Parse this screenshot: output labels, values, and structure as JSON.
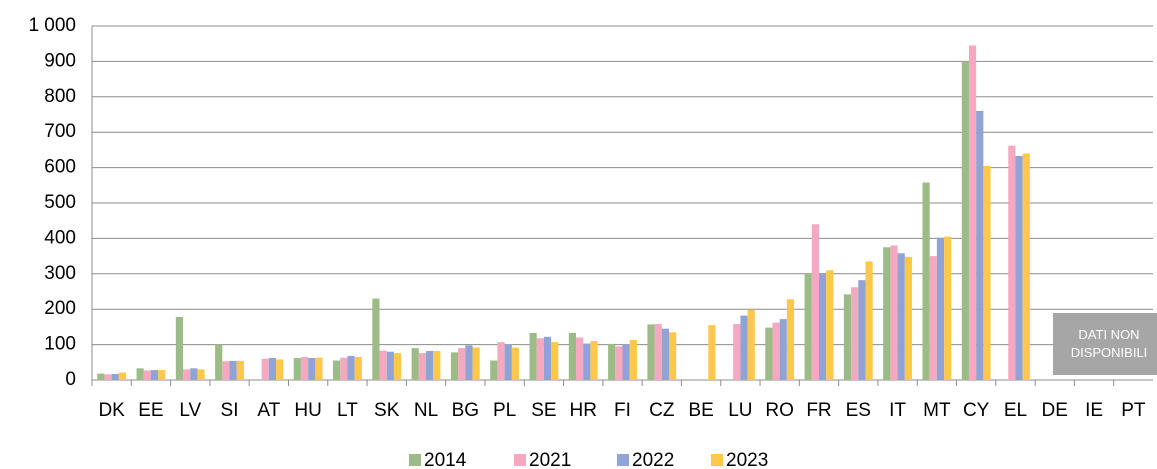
{
  "chart_data": {
    "type": "bar",
    "categories": [
      "DK",
      "EE",
      "LV",
      "SI",
      "AT",
      "HU",
      "LT",
      "SK",
      "NL",
      "BG",
      "PL",
      "SE",
      "HR",
      "FI",
      "CZ",
      "BE",
      "LU",
      "RO",
      "FR",
      "ES",
      "IT",
      "MT",
      "CY",
      "EL",
      "DE",
      "IE",
      "PT"
    ],
    "series": [
      {
        "name": "2014",
        "color": "#9cbb87",
        "values": [
          18,
          33,
          178,
          100,
          null,
          62,
          55,
          230,
          90,
          78,
          55,
          133,
          133,
          102,
          157,
          null,
          null,
          148,
          302,
          242,
          375,
          558,
          900,
          null,
          null,
          null,
          null
        ]
      },
      {
        "name": "2021",
        "color": "#f5a8c0",
        "values": [
          16,
          27,
          30,
          53,
          60,
          65,
          63,
          83,
          76,
          90,
          107,
          118,
          120,
          95,
          158,
          null,
          158,
          162,
          440,
          262,
          380,
          350,
          945,
          662,
          null,
          null,
          null
        ]
      },
      {
        "name": "2022",
        "color": "#8fa3d5",
        "values": [
          17,
          28,
          33,
          54,
          62,
          62,
          68,
          80,
          82,
          98,
          100,
          122,
          103,
          100,
          145,
          null,
          182,
          172,
          302,
          282,
          358,
          402,
          760,
          633,
          null,
          null,
          null
        ]
      },
      {
        "name": "2023",
        "color": "#ffc84a",
        "values": [
          21,
          28,
          30,
          54,
          58,
          63,
          65,
          76,
          82,
          92,
          92,
          107,
          110,
          113,
          135,
          155,
          198,
          228,
          310,
          335,
          348,
          405,
          605,
          640,
          null,
          null,
          null
        ]
      }
    ],
    "ylim": [
      0,
      1000
    ],
    "yticks": [
      0,
      100,
      200,
      300,
      400,
      500,
      600,
      700,
      800,
      900,
      {
        "value": 1000,
        "label": "1 000"
      }
    ],
    "grid": true,
    "annotation": "DATI NON DISPONIBILI"
  }
}
